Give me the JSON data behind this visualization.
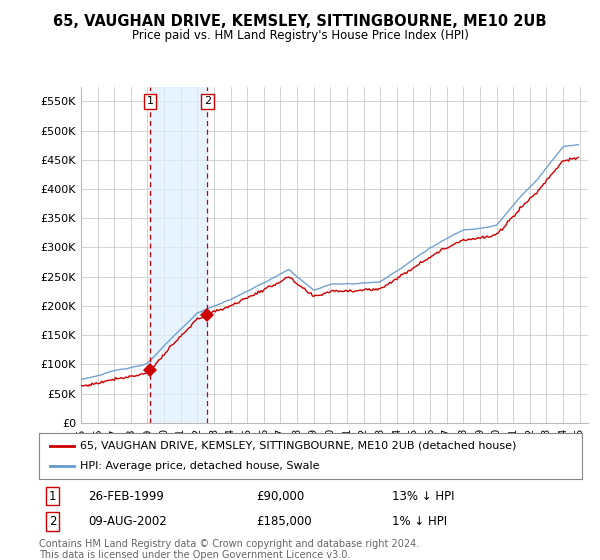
{
  "title": "65, VAUGHAN DRIVE, KEMSLEY, SITTINGBOURNE, ME10 2UB",
  "subtitle": "Price paid vs. HM Land Registry's House Price Index (HPI)",
  "ylim": [
    0,
    575000
  ],
  "xlim_start": 1995.0,
  "xlim_end": 2025.5,
  "transaction1_date": 1999.15,
  "transaction1_price": 90000,
  "transaction2_date": 2002.6,
  "transaction2_price": 185000,
  "transaction1_text": "26-FEB-1999",
  "transaction1_hpi": "13% ↓ HPI",
  "transaction2_text": "09-AUG-2002",
  "transaction2_hpi": "1% ↓ HPI",
  "line_color_house": "#cc0000",
  "line_color_hpi": "#6699cc",
  "shade_color": "#ddeeff",
  "legend_house": "65, VAUGHAN DRIVE, KEMSLEY, SITTINGBOURNE, ME10 2UB (detached house)",
  "legend_hpi": "HPI: Average price, detached house, Swale",
  "footer": "Contains HM Land Registry data © Crown copyright and database right 2024.\nThis data is licensed under the Open Government Licence v3.0.",
  "background_color": "#ffffff",
  "grid_color": "#cccccc"
}
